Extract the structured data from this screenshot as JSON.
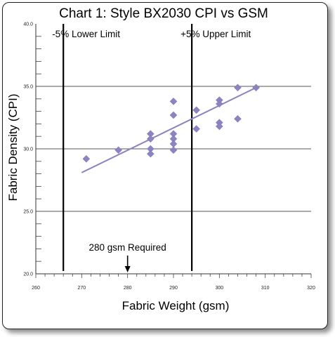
{
  "chart_data": {
    "type": "scatter",
    "title": "Chart 1: Style BX2030 CPI vs GSM",
    "xlabel": "Fabric Weight (gsm)",
    "ylabel": "Fabric Density (CPI)",
    "xlim": [
      260,
      320
    ],
    "ylim": [
      20,
      40
    ],
    "x_ticks": [
      "260",
      "270",
      "280",
      "290",
      "300",
      "310",
      "320"
    ],
    "y_ticks": [
      "20.0",
      "25.0",
      "30.0",
      "35.0",
      "40.0"
    ],
    "gridlines_y": [
      25,
      30,
      35
    ],
    "points": [
      {
        "x": 271,
        "y": 29.2
      },
      {
        "x": 278,
        "y": 29.9
      },
      {
        "x": 285,
        "y": 31.2
      },
      {
        "x": 285,
        "y": 30.8
      },
      {
        "x": 285,
        "y": 30.0
      },
      {
        "x": 285,
        "y": 29.6
      },
      {
        "x": 290,
        "y": 33.8
      },
      {
        "x": 290,
        "y": 32.7
      },
      {
        "x": 290,
        "y": 31.2
      },
      {
        "x": 290,
        "y": 30.8
      },
      {
        "x": 290,
        "y": 30.4
      },
      {
        "x": 290,
        "y": 29.9
      },
      {
        "x": 295,
        "y": 33.1
      },
      {
        "x": 295,
        "y": 31.6
      },
      {
        "x": 300,
        "y": 33.9
      },
      {
        "x": 300,
        "y": 33.6
      },
      {
        "x": 300,
        "y": 32.1
      },
      {
        "x": 300,
        "y": 31.8
      },
      {
        "x": 304,
        "y": 34.9
      },
      {
        "x": 304,
        "y": 32.4
      },
      {
        "x": 308,
        "y": 34.9
      }
    ],
    "trendline": {
      "x": [
        270,
        308
      ],
      "y": [
        28.1,
        34.9
      ]
    },
    "reference_lines": [
      {
        "x": 266,
        "label": "-5% Lower Limit"
      },
      {
        "x": 294,
        "label": "+5% Upper Limit"
      }
    ],
    "annotation": {
      "x": 280,
      "label": "280 gsm Required"
    },
    "colors": {
      "marker": "#8b84c0",
      "trendline": "#8b84c0",
      "reference": "#000000",
      "grid": "#555555"
    }
  }
}
